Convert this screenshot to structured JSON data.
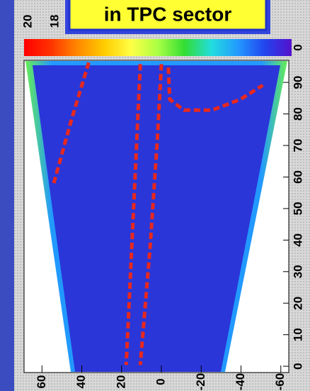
{
  "chart_data": {
    "type": "track",
    "title": "in TPC sector",
    "xlim": [
      69,
      -64
    ],
    "xticks": [
      60,
      40,
      20,
      0,
      -20,
      -40,
      -60
    ],
    "ylim": [
      -2,
      97
    ],
    "yticks": [
      0,
      10,
      20,
      30,
      40,
      50,
      60,
      70,
      80,
      90
    ],
    "zlim": [
      20,
      0
    ],
    "zticks": [
      20,
      18,
      0
    ],
    "colorbar_colors": [
      "#ff0000",
      "#ff3300",
      "#ff8800",
      "#ffcc00",
      "#ffff44",
      "#aaff44",
      "#33dd33",
      "#22dddd",
      "#2299ff",
      "#2244ee",
      "#5511cc"
    ],
    "series": [
      {
        "color": "#e8281e",
        "x": [
          36.5,
          45.3,
          54.2
        ],
        "values": [
          96.3,
          77.9,
          57.7
        ]
      },
      {
        "color": "#e8281e",
        "x": [
          10.6,
          12.4,
          14.9,
          17.7
        ],
        "values": [
          95.8,
          71.1,
          37.5,
          0.4
        ]
      },
      {
        "color": "#e8281e",
        "x": [
          0,
          2.1,
          5.7,
          10.6
        ],
        "values": [
          95.8,
          71.1,
          37.5,
          0.4
        ]
      },
      {
        "color": "#e8281e",
        "x": [
          -3.5,
          -4.2,
          -11.3,
          -25.5,
          -39.6,
          -51
        ],
        "values": [
          94.7,
          84.6,
          81.2,
          81.2,
          84.6,
          89.1
        ]
      }
    ]
  }
}
